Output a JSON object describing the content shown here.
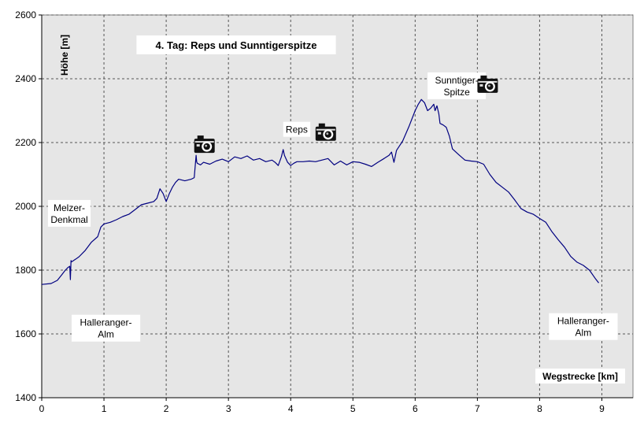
{
  "chart_data": {
    "type": "line",
    "title": "4. Tag: Reps und Sunntigerspitze",
    "xlabel": "Wegstrecke [km]",
    "ylabel": "Höhe [m]",
    "xlim": [
      0,
      9.5
    ],
    "ylim": [
      1400,
      2600
    ],
    "x_ticks": [
      0,
      1,
      2,
      3,
      4,
      5,
      6,
      7,
      8,
      9
    ],
    "y_ticks": [
      1400,
      1600,
      1800,
      2000,
      2200,
      2400,
      2600
    ],
    "grid": true,
    "series_color": "#000080",
    "plot_background": "#e6e6e6",
    "series": [
      {
        "x": [
          0.0,
          0.15,
          0.25,
          0.32,
          0.38,
          0.42,
          0.45,
          0.46,
          0.47,
          0.48,
          0.55,
          0.6,
          0.7,
          0.8,
          0.9,
          0.95,
          1.0,
          1.1,
          1.2,
          1.3,
          1.4,
          1.5,
          1.6,
          1.7,
          1.8,
          1.85,
          1.9,
          1.95,
          2.0,
          2.05,
          2.1,
          2.15,
          2.2,
          2.3,
          2.4,
          2.45,
          2.48,
          2.49,
          2.5,
          2.55,
          2.6,
          2.7,
          2.8,
          2.9,
          3.0,
          3.1,
          3.2,
          3.3,
          3.4,
          3.5,
          3.6,
          3.7,
          3.75,
          3.8,
          3.85,
          3.88,
          3.9,
          3.95,
          4.0,
          4.05,
          4.1,
          4.2,
          4.3,
          4.4,
          4.5,
          4.6,
          4.7,
          4.8,
          4.9,
          5.0,
          5.1,
          5.2,
          5.3,
          5.4,
          5.5,
          5.58,
          5.62,
          5.66,
          5.7,
          5.8,
          5.9,
          6.0,
          6.05,
          6.1,
          6.15,
          6.2,
          6.25,
          6.3,
          6.32,
          6.35,
          6.38,
          6.4,
          6.45,
          6.5,
          6.55,
          6.6,
          6.7,
          6.8,
          6.9,
          7.0,
          7.1,
          7.2,
          7.3,
          7.4,
          7.5,
          7.6,
          7.7,
          7.8,
          7.9,
          8.0,
          8.1,
          8.2,
          8.3,
          8.4,
          8.5,
          8.6,
          8.7,
          8.8,
          8.9,
          8.95
        ],
        "y": [
          1755,
          1758,
          1768,
          1785,
          1800,
          1808,
          1812,
          1770,
          1830,
          1826,
          1835,
          1842,
          1862,
          1888,
          1905,
          1935,
          1945,
          1950,
          1958,
          1968,
          1975,
          1990,
          2005,
          2010,
          2015,
          2025,
          2055,
          2040,
          2015,
          2040,
          2060,
          2075,
          2085,
          2080,
          2085,
          2090,
          2160,
          2140,
          2135,
          2130,
          2138,
          2132,
          2142,
          2148,
          2140,
          2155,
          2150,
          2158,
          2145,
          2150,
          2140,
          2145,
          2138,
          2128,
          2155,
          2178,
          2160,
          2138,
          2128,
          2135,
          2140,
          2140,
          2142,
          2140,
          2145,
          2150,
          2130,
          2142,
          2130,
          2140,
          2138,
          2132,
          2125,
          2138,
          2150,
          2160,
          2170,
          2138,
          2175,
          2205,
          2250,
          2300,
          2320,
          2335,
          2325,
          2300,
          2308,
          2320,
          2300,
          2315,
          2290,
          2260,
          2255,
          2248,
          2220,
          2180,
          2162,
          2145,
          2142,
          2140,
          2132,
          2100,
          2075,
          2060,
          2045,
          2020,
          1993,
          1982,
          1975,
          1962,
          1950,
          1920,
          1895,
          1872,
          1843,
          1825,
          1815,
          1800,
          1772,
          1760
        ]
      }
    ],
    "annotations": [
      {
        "text": "Melzer-",
        "text2": "Denkmal",
        "x": 0.1,
        "y": 2020
      },
      {
        "text": "Halleranger-",
        "text2": "Alm",
        "x": 0.48,
        "y": 1660
      },
      {
        "text": "Reps",
        "x": 3.88,
        "y": 2265
      },
      {
        "text": "Sunntiger-",
        "text2": "Spitze",
        "x": 6.2,
        "y": 2420
      },
      {
        "text": "Halleranger-",
        "text2": "Alm",
        "x": 8.15,
        "y": 1665
      }
    ],
    "camera_icons": [
      {
        "x": 2.45,
        "y": 2222
      },
      {
        "x": 4.4,
        "y": 2260
      },
      {
        "x": 7.0,
        "y": 2410
      }
    ]
  }
}
